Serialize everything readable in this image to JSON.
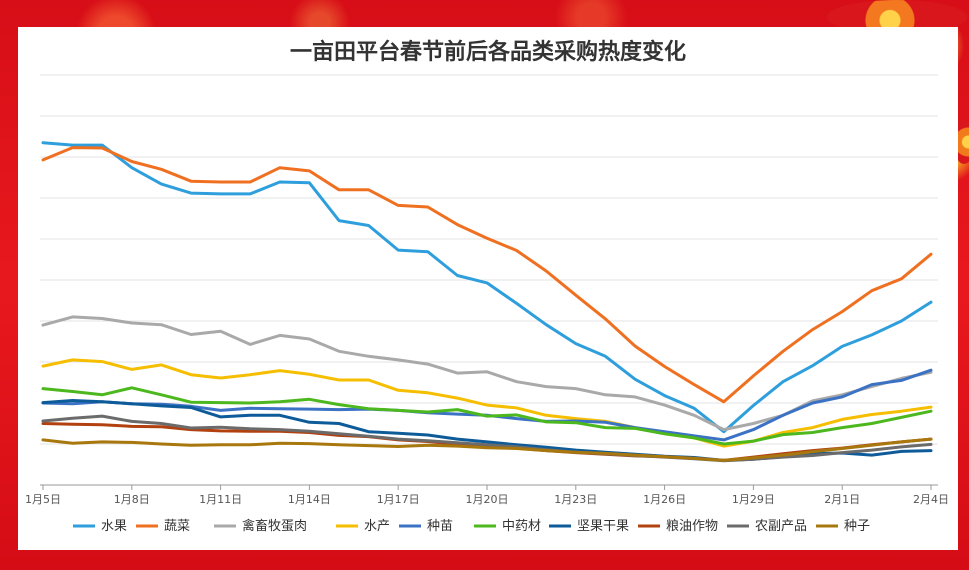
{
  "chart_data": {
    "type": "line",
    "title": "一亩田平台春节前后各品类采购热度变化",
    "xlabel": "",
    "ylabel": "",
    "ylim": [
      0,
      100
    ],
    "grid": "horizontal",
    "legend_position": "bottom",
    "x_ticks": [
      "1月5日",
      "1月8日",
      "1月11日",
      "1月14日",
      "1月17日",
      "1月20日",
      "1月23日",
      "1月26日",
      "1月29日",
      "2月1日",
      "2月4日"
    ],
    "series": [
      {
        "name": "水果",
        "color": "#2e9fdc",
        "values": [
          83.5,
          82.9,
          82.9,
          77.4,
          73.4,
          71.2,
          71.0,
          71.0,
          73.9,
          73.7,
          64.5,
          63.3,
          57.3,
          56.9,
          51.1,
          49.3,
          44.3,
          39.1,
          34.5,
          31.4,
          25.8,
          21.8,
          18.7,
          13.0,
          19.4,
          25.2,
          29.1,
          33.8,
          36.6,
          40.0,
          44.6
        ]
      },
      {
        "name": "蔬菜",
        "color": "#ef7021",
        "values": [
          79.3,
          82.3,
          82.2,
          78.9,
          77.0,
          74.1,
          73.9,
          73.9,
          77.4,
          76.6,
          72.0,
          72.0,
          68.2,
          67.8,
          63.5,
          60.2,
          57.2,
          52.2,
          46.3,
          40.5,
          33.9,
          28.9,
          24.5,
          20.3,
          26.6,
          32.6,
          37.9,
          42.3,
          47.4,
          50.3,
          56.3
        ]
      },
      {
        "name": "禽畜牧蛋肉",
        "color": "#a9a9a9",
        "values": [
          39.0,
          41.0,
          40.6,
          39.5,
          39.1,
          36.7,
          37.5,
          34.3,
          36.5,
          35.6,
          32.6,
          31.4,
          30.5,
          29.5,
          27.3,
          27.6,
          25.2,
          24.0,
          23.5,
          22.0,
          21.5,
          19.5,
          17.0,
          13.5,
          15.0,
          17.0,
          20.5,
          22.0,
          24.0,
          26.0,
          27.5
        ]
      },
      {
        "name": "水产",
        "color": "#f6be00",
        "values": [
          29.0,
          30.5,
          30.1,
          28.2,
          29.3,
          26.9,
          26.1,
          26.9,
          27.9,
          27.0,
          25.6,
          25.6,
          23.1,
          22.5,
          21.2,
          19.5,
          18.8,
          17.0,
          16.2,
          15.5,
          14.0,
          12.5,
          11.5,
          9.5,
          10.7,
          12.8,
          14.0,
          16.0,
          17.2,
          18.0,
          19.0
        ]
      },
      {
        "name": "种苗",
        "color": "#3b72c4",
        "values": [
          20.0,
          19.8,
          20.3,
          19.8,
          19.7,
          19.2,
          18.2,
          18.7,
          18.6,
          18.5,
          18.4,
          18.5,
          18.2,
          17.6,
          17.3,
          17.0,
          16.2,
          15.5,
          15.6,
          15.3,
          14.0,
          13.0,
          12.0,
          11.0,
          13.5,
          17.0,
          20.0,
          21.5,
          24.5,
          25.5,
          28.0
        ]
      },
      {
        "name": "中药材",
        "color": "#4cb81e",
        "values": [
          23.5,
          22.8,
          22.0,
          23.7,
          22.0,
          20.2,
          20.1,
          20.0,
          20.3,
          20.9,
          19.6,
          18.6,
          18.2,
          17.8,
          18.4,
          16.8,
          17.1,
          15.4,
          15.2,
          14.0,
          13.8,
          12.5,
          11.5,
          10.0,
          10.7,
          12.3,
          12.8,
          14.0,
          15.0,
          16.5,
          18.0
        ]
      },
      {
        "name": "坚果干果",
        "color": "#0e5b9a",
        "values": [
          20.1,
          20.6,
          20.3,
          19.8,
          19.3,
          18.9,
          16.6,
          17.0,
          17.0,
          15.3,
          15.0,
          13.0,
          12.6,
          12.2,
          11.2,
          10.5,
          9.8,
          9.2,
          8.5,
          8.0,
          7.5,
          7.0,
          6.7,
          6.0,
          6.3,
          6.9,
          7.6,
          7.8,
          7.3,
          8.2,
          8.4
        ]
      },
      {
        "name": "粮油作物",
        "color": "#b2410f",
        "values": [
          15.0,
          14.8,
          14.7,
          14.3,
          14.2,
          13.5,
          13.2,
          13.1,
          13.1,
          12.8,
          12.1,
          11.8,
          11.0,
          10.6,
          9.9,
          9.5,
          9.0,
          8.4,
          7.9,
          7.5,
          7.1,
          6.9,
          6.5,
          6.0,
          6.8,
          7.6,
          8.4,
          9.0,
          9.8,
          10.5,
          11.2
        ]
      },
      {
        "name": "农副产品",
        "color": "#6b6b6b",
        "values": [
          15.6,
          16.3,
          16.8,
          15.5,
          15.0,
          13.9,
          14.1,
          13.7,
          13.5,
          13.1,
          12.5,
          11.9,
          11.2,
          10.8,
          10.3,
          9.8,
          9.3,
          8.6,
          8.0,
          7.6,
          7.2,
          6.8,
          6.4,
          5.9,
          6.3,
          6.8,
          7.2,
          7.9,
          8.5,
          9.3,
          9.9
        ]
      },
      {
        "name": "种子",
        "color": "#a8780e",
        "values": [
          11.0,
          10.2,
          10.5,
          10.4,
          10.0,
          9.7,
          9.8,
          9.8,
          10.2,
          10.1,
          9.8,
          9.6,
          9.4,
          9.7,
          9.5,
          9.1,
          8.9,
          8.4,
          8.0,
          7.7,
          7.3,
          6.9,
          6.5,
          6.0,
          6.6,
          7.3,
          8.1,
          8.9,
          9.7,
          10.5,
          11.2
        ]
      }
    ]
  }
}
